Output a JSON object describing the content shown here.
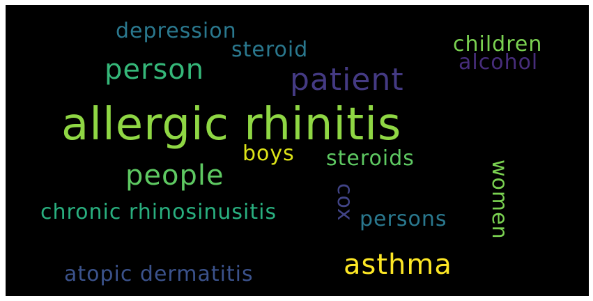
{
  "words": [
    {
      "text": "allergic rhinitis",
      "color": "#8fd744"
    },
    {
      "text": "patient",
      "color": "#443a83"
    },
    {
      "text": "person",
      "color": "#35b779"
    },
    {
      "text": "people",
      "color": "#5ec962"
    },
    {
      "text": "asthma",
      "color": "#fde725"
    },
    {
      "text": "depression",
      "color": "#2a788e"
    },
    {
      "text": "steroid",
      "color": "#2a788e"
    },
    {
      "text": "children",
      "color": "#7ad151"
    },
    {
      "text": "alcohol",
      "color": "#472d7b"
    },
    {
      "text": "boys",
      "color": "#dde318"
    },
    {
      "text": "steroids",
      "color": "#5ec962"
    },
    {
      "text": "chronic rhinosinusitis",
      "color": "#29af7f"
    },
    {
      "text": "cox",
      "color": "#414487"
    },
    {
      "text": "women",
      "color": "#7ad151"
    },
    {
      "text": "persons",
      "color": "#2a788e"
    },
    {
      "text": "atopic dermatitis",
      "color": "#3b528b"
    }
  ]
}
